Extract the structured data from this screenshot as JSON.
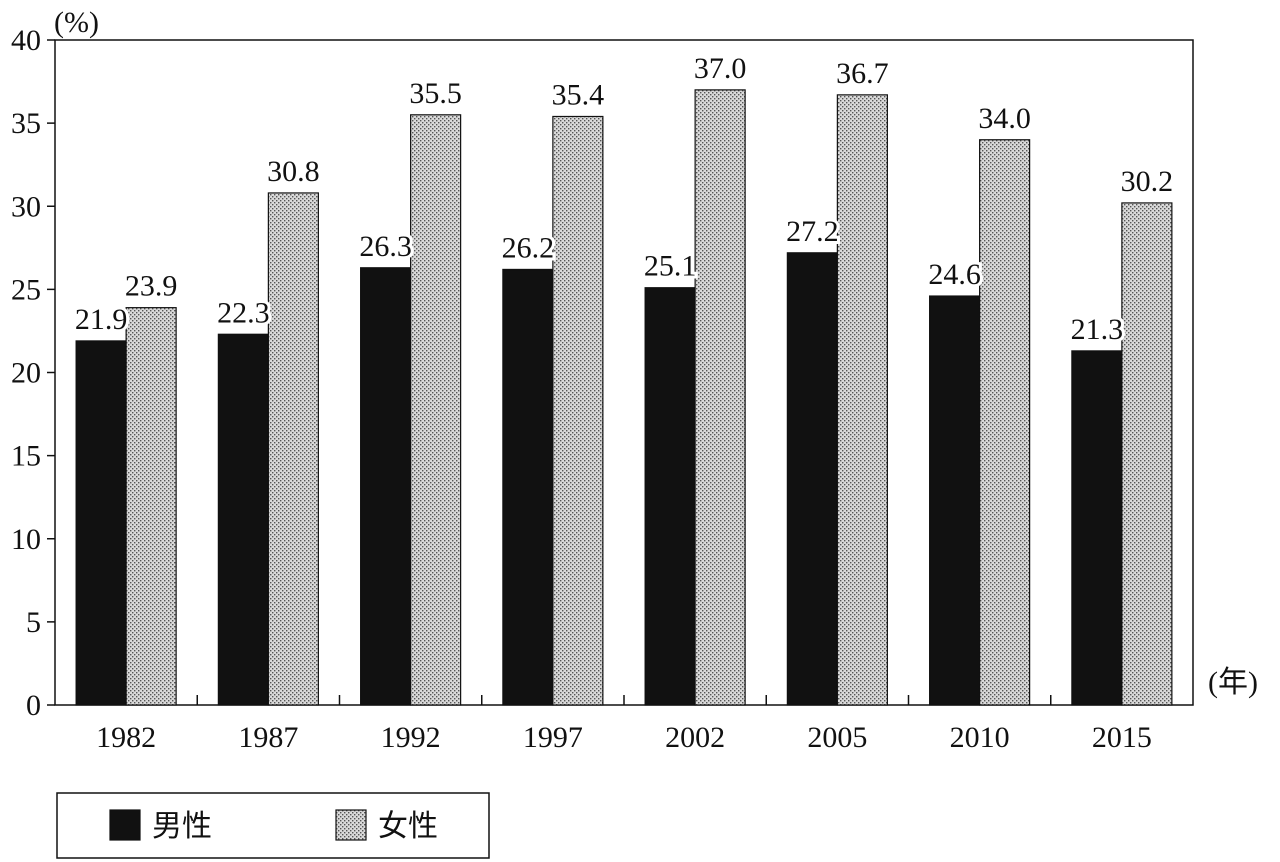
{
  "chart_data": {
    "type": "bar",
    "y_unit_label": "(%)",
    "x_unit_label": "(年)",
    "ylim": [
      0,
      40
    ],
    "yticks": [
      0,
      5,
      10,
      15,
      20,
      25,
      30,
      35,
      40
    ],
    "categories": [
      "1982",
      "1987",
      "1992",
      "1997",
      "2002",
      "2005",
      "2010",
      "2015"
    ],
    "series": [
      {
        "name": "男性",
        "values": [
          21.9,
          22.3,
          26.3,
          26.2,
          25.1,
          27.2,
          24.6,
          21.3
        ],
        "color": "#111111",
        "pattern": "solid"
      },
      {
        "name": "女性",
        "values": [
          23.9,
          30.8,
          35.5,
          35.4,
          37.0,
          36.7,
          34.0,
          30.2
        ],
        "color": "#bdbdbd",
        "pattern": "dotted"
      }
    ],
    "value_labels": {
      "男性": [
        "21.9",
        "22.3",
        "26.3",
        "26.2",
        "25.1",
        "27.2",
        "24.6",
        "21.3"
      ],
      "女性": [
        "23.9",
        "30.8",
        "35.5",
        "35.4",
        "37.0",
        "36.7",
        "34.0",
        "30.2"
      ]
    },
    "grid": false,
    "legend_position": "bottom-left"
  }
}
